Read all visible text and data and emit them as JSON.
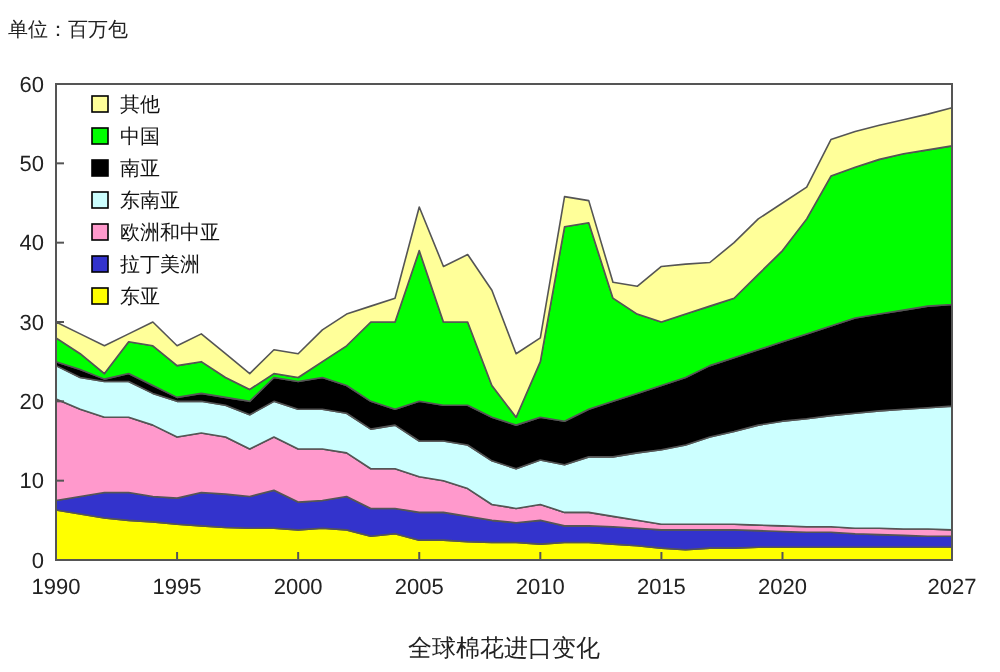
{
  "chart_data": {
    "type": "area",
    "stacked": true,
    "ylabel": "单位：百万包",
    "xlabel": "全球棉花进口变化",
    "x": [
      1990,
      1991,
      1992,
      1993,
      1994,
      1995,
      1996,
      1997,
      1998,
      1999,
      2000,
      2001,
      2002,
      2003,
      2004,
      2005,
      2006,
      2007,
      2008,
      2009,
      2010,
      2011,
      2012,
      2013,
      2014,
      2015,
      2016,
      2017,
      2018,
      2019,
      2020,
      2021,
      2022,
      2023,
      2024,
      2025,
      2026,
      2027
    ],
    "xlim": [
      1990,
      2027
    ],
    "xticks": [
      1990,
      1995,
      2000,
      2005,
      2010,
      2015,
      2020,
      2027
    ],
    "ylim": [
      0,
      60
    ],
    "yticks": [
      0,
      10,
      20,
      30,
      40,
      50,
      60
    ],
    "grid": false,
    "legend": "top left",
    "series": [
      {
        "name": "东亚",
        "color": "#ffff00",
        "values": [
          6.3,
          5.8,
          5.3,
          5,
          4.8,
          4.5,
          4.3,
          4.1,
          4,
          4,
          3.8,
          4,
          3.8,
          3,
          3.3,
          2.5,
          2.5,
          2.3,
          2.2,
          2.2,
          2,
          2.2,
          2.2,
          2,
          1.8,
          1.5,
          1.3,
          1.5,
          1.5,
          1.6,
          1.6,
          1.6,
          1.6,
          1.6,
          1.6,
          1.6,
          1.6,
          1.6
        ]
      },
      {
        "name": "拉丁美洲",
        "color": "#3333cc",
        "values": [
          1.2,
          2.2,
          3.2,
          3.5,
          3.2,
          3.3,
          4.2,
          4.2,
          4,
          4.8,
          3.5,
          3.5,
          4.2,
          3.5,
          3.2,
          3.5,
          3.5,
          3.2,
          2.8,
          2.5,
          3,
          2.1,
          2.1,
          2.2,
          2.2,
          2.3,
          2.5,
          2.3,
          2.3,
          2.1,
          2,
          1.9,
          1.9,
          1.7,
          1.6,
          1.5,
          1.4,
          1.4
        ]
      },
      {
        "name": "欧洲和中亚",
        "color": "#ff99cc",
        "values": [
          12.8,
          11,
          9.5,
          9.5,
          9,
          7.7,
          7.5,
          7.2,
          6,
          6.7,
          6.7,
          6.5,
          5.5,
          5,
          5,
          4.5,
          4,
          3.5,
          2,
          1.8,
          2,
          1.7,
          1.7,
          1.3,
          1,
          0.7,
          0.7,
          0.7,
          0.7,
          0.7,
          0.7,
          0.7,
          0.7,
          0.7,
          0.8,
          0.8,
          0.9,
          0.8
        ]
      },
      {
        "name": "东南亚",
        "color": "#ccffff",
        "values": [
          4.2,
          4,
          4.5,
          4.5,
          4,
          4.5,
          4,
          4,
          4.3,
          4.5,
          5,
          5,
          5,
          5,
          5.5,
          4.5,
          5,
          5.5,
          5.5,
          5,
          5.6,
          6,
          7,
          7.5,
          8.5,
          9.4,
          10,
          11,
          11.7,
          12.6,
          13.2,
          13.6,
          14,
          14.5,
          14.8,
          15.1,
          15.3,
          15.6
        ]
      },
      {
        "name": "南亚",
        "color": "#000000",
        "values": [
          0.5,
          1,
          0.3,
          1,
          1,
          0.5,
          1,
          1,
          1.7,
          3,
          3.5,
          4,
          3.5,
          3.5,
          2,
          5,
          4.5,
          5,
          5.5,
          5.5,
          5.4,
          5.5,
          6,
          7,
          7.5,
          8.1,
          8.5,
          9,
          9.3,
          9.5,
          10,
          10.7,
          11.3,
          12,
          12.2,
          12.5,
          12.8,
          12.8
        ]
      },
      {
        "name": "中国",
        "color": "#00ff00",
        "values": [
          3,
          2,
          0.7,
          4,
          5,
          4,
          4,
          2.5,
          1.5,
          0.5,
          0.5,
          2,
          5,
          10,
          11,
          19,
          10.5,
          10.5,
          4,
          1,
          7,
          24.5,
          23.5,
          13,
          10,
          8,
          8,
          7.5,
          7.5,
          9.5,
          11.5,
          14.5,
          18.9,
          19,
          19.5,
          19.7,
          19.7,
          20
        ]
      },
      {
        "name": "其他",
        "color": "#ffff99",
        "values": [
          2,
          2.5,
          3.5,
          1,
          3,
          2.5,
          3.5,
          3,
          2,
          3,
          3,
          4,
          4,
          2,
          3,
          5.5,
          7,
          8.5,
          12,
          8,
          3,
          3.8,
          2.8,
          2,
          3.5,
          7,
          6.3,
          5.5,
          7,
          7,
          6,
          4,
          4.6,
          4.5,
          4.3,
          4.3,
          4.5,
          4.8
        ]
      }
    ]
  }
}
